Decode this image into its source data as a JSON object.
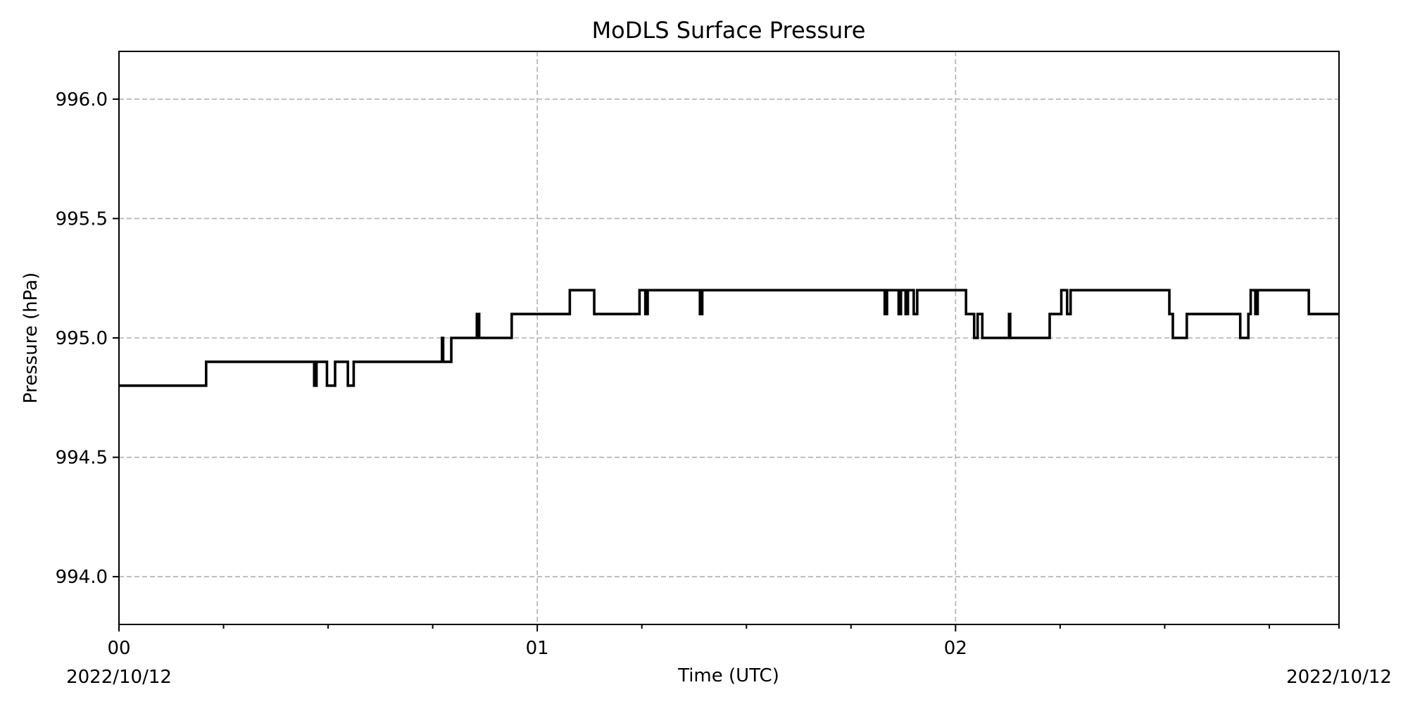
{
  "chart_data": {
    "type": "line",
    "title": "MoDLS Surface Pressure",
    "xlabel": "Time (UTC)",
    "ylabel": "Pressure (hPa)",
    "xlim": [
      "2022-10-12 00:00",
      "2022-10-12 02:55"
    ],
    "ylim": [
      993.8,
      996.2
    ],
    "grid": true,
    "line_style": "steps-post",
    "line_color": "#000000",
    "x_major_ticks": [
      {
        "time": "2022-10-12 00:00",
        "label": "00"
      },
      {
        "time": "2022-10-12 01:00",
        "label": "01"
      },
      {
        "time": "2022-10-12 02:00",
        "label": "02"
      }
    ],
    "x_minor_ticks": [
      "00:15",
      "00:30",
      "00:45",
      "01:15",
      "01:30",
      "01:45",
      "02:15",
      "02:30",
      "02:45",
      "02:55"
    ],
    "date_labels": {
      "left": "2022/10/12",
      "right": "2022/10/12"
    },
    "y_ticks": [
      994.0,
      994.5,
      995.0,
      995.5,
      996.0
    ],
    "y_tick_labels": [
      "994.0",
      "994.5",
      "995.0",
      "995.5",
      "996.0"
    ],
    "series": [
      {
        "x": [
          "00:00:00",
          "00:12:30",
          "00:28:00",
          "00:28:20",
          "00:29:50",
          "00:31:00",
          "00:32:50",
          "00:33:40",
          "00:46:20",
          "00:46:30",
          "00:47:40",
          "00:51:20",
          "00:51:40",
          "00:56:20",
          "01:04:40",
          "01:08:10",
          "01:14:40",
          "01:15:30",
          "01:15:50",
          "01:23:20",
          "01:23:40",
          "01:49:50",
          "01:50:10",
          "01:51:50",
          "01:52:10",
          "01:52:50",
          "01:53:10",
          "01:54:00",
          "01:54:30",
          "02:01:30",
          "02:02:40",
          "02:03:10",
          "02:03:50",
          "02:07:40",
          "02:07:50",
          "02:13:30",
          "02:15:10",
          "02:16:00",
          "02:16:30",
          "02:30:40",
          "02:31:10",
          "02:33:10",
          "02:40:50",
          "02:42:00",
          "02:42:20",
          "02:43:00",
          "02:43:20",
          "02:50:40",
          "02:55:00"
        ],
        "y": [
          994.8,
          994.9,
          994.8,
          994.9,
          994.8,
          994.9,
          994.8,
          994.9,
          995.0,
          994.9,
          995.0,
          995.1,
          995.0,
          995.1,
          995.2,
          995.1,
          995.2,
          995.1,
          995.2,
          995.1,
          995.2,
          995.1,
          995.2,
          995.1,
          995.2,
          995.1,
          995.2,
          995.1,
          995.2,
          995.1,
          995.0,
          995.1,
          995.0,
          995.1,
          995.0,
          995.1,
          995.2,
          995.1,
          995.2,
          995.1,
          995.0,
          995.1,
          995.0,
          995.1,
          995.2,
          995.1,
          995.2,
          995.1,
          995.1
        ]
      }
    ]
  }
}
